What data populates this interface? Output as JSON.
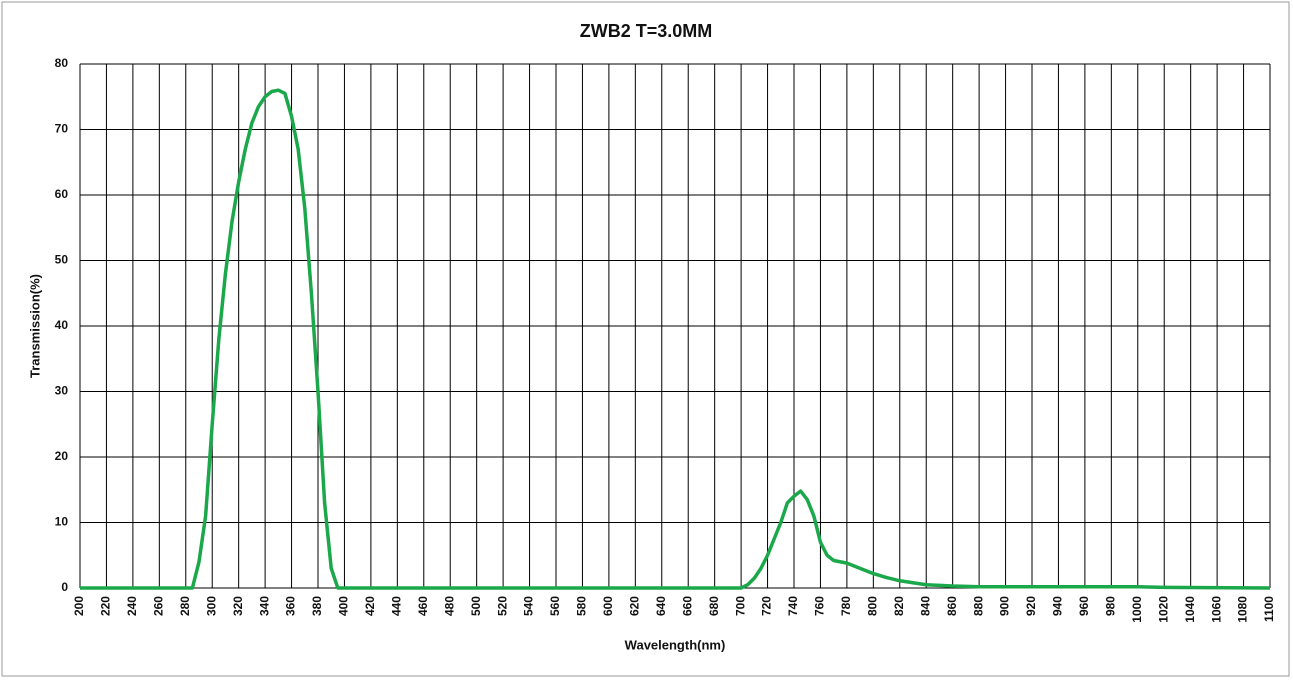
{
  "chart_data": {
    "type": "line",
    "title": "ZWB2 T=3.0MM",
    "x_label": "Wavelength(nm)",
    "y_label": "Transmission(%)",
    "x": [
      200,
      280,
      285,
      290,
      295,
      300,
      305,
      310,
      315,
      320,
      325,
      330,
      335,
      340,
      345,
      350,
      355,
      360,
      365,
      370,
      375,
      380,
      385,
      390,
      395,
      400,
      700,
      705,
      710,
      715,
      720,
      725,
      730,
      735,
      740,
      745,
      750,
      755,
      760,
      765,
      770,
      780,
      790,
      800,
      810,
      820,
      830,
      840,
      850,
      860,
      880,
      900,
      1000,
      1020,
      1100
    ],
    "values": [
      0,
      0,
      0,
      4,
      11,
      25,
      38,
      48,
      56,
      62,
      67,
      71,
      73.5,
      75,
      75.8,
      76,
      75.5,
      72,
      67,
      58,
      45,
      30,
      13,
      3,
      0,
      0,
      0,
      0.5,
      1.5,
      3,
      5,
      7.5,
      10,
      13,
      14,
      14.8,
      13.5,
      11,
      7,
      5,
      4.2,
      3.8,
      3,
      2.2,
      1.6,
      1.1,
      0.8,
      0.5,
      0.4,
      0.3,
      0.2,
      0.2,
      0.2,
      0.1,
      0
    ],
    "color": "#1aa84a",
    "xlim": [
      200,
      1100
    ],
    "xticks": [
      200,
      220,
      240,
      260,
      280,
      300,
      320,
      340,
      360,
      380,
      400,
      420,
      440,
      460,
      480,
      500,
      520,
      540,
      560,
      580,
      600,
      620,
      640,
      660,
      680,
      700,
      720,
      740,
      760,
      780,
      800,
      820,
      840,
      860,
      880,
      900,
      920,
      940,
      960,
      980,
      1000,
      1020,
      1040,
      1060,
      1080,
      1100
    ],
    "ylim": [
      0,
      80
    ],
    "yticks": [
      0,
      10,
      20,
      30,
      40,
      50,
      60,
      70,
      80
    ],
    "grid": true
  }
}
